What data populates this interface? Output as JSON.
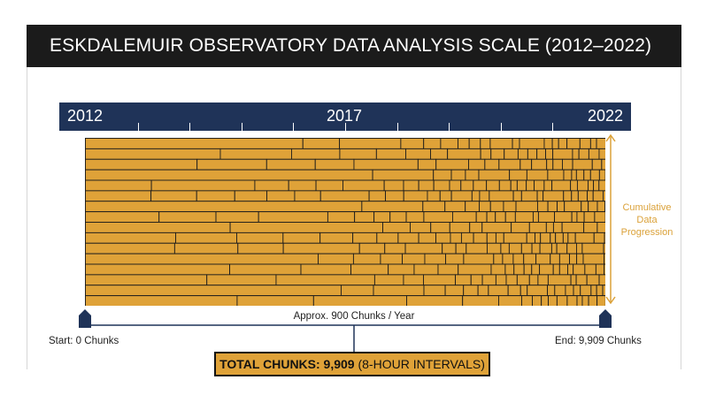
{
  "title": "ESKDALEMUIR OBSERVATORY DATA ANALYSIS SCALE (2012–2022)",
  "timeline": {
    "start": "2012",
    "mid": "2017",
    "end": "2022"
  },
  "side_label": [
    "Cumulative",
    "Data",
    "Progression"
  ],
  "axis_label": "Approx. 900 Chunks / Year",
  "start_label": "Start: 0 Chunks",
  "end_label": "End: 9,909 Chunks",
  "total": {
    "bold": "TOTAL CHUNKS: 9,909",
    "rest": " (8-HOUR INTERVALS)"
  },
  "colors": {
    "navy": "#1f3358",
    "gold": "#dfa238",
    "cell_border": "#1c1c1c",
    "title_bg": "#1b1b1b"
  },
  "mosaic": {
    "rows": 16
  }
}
